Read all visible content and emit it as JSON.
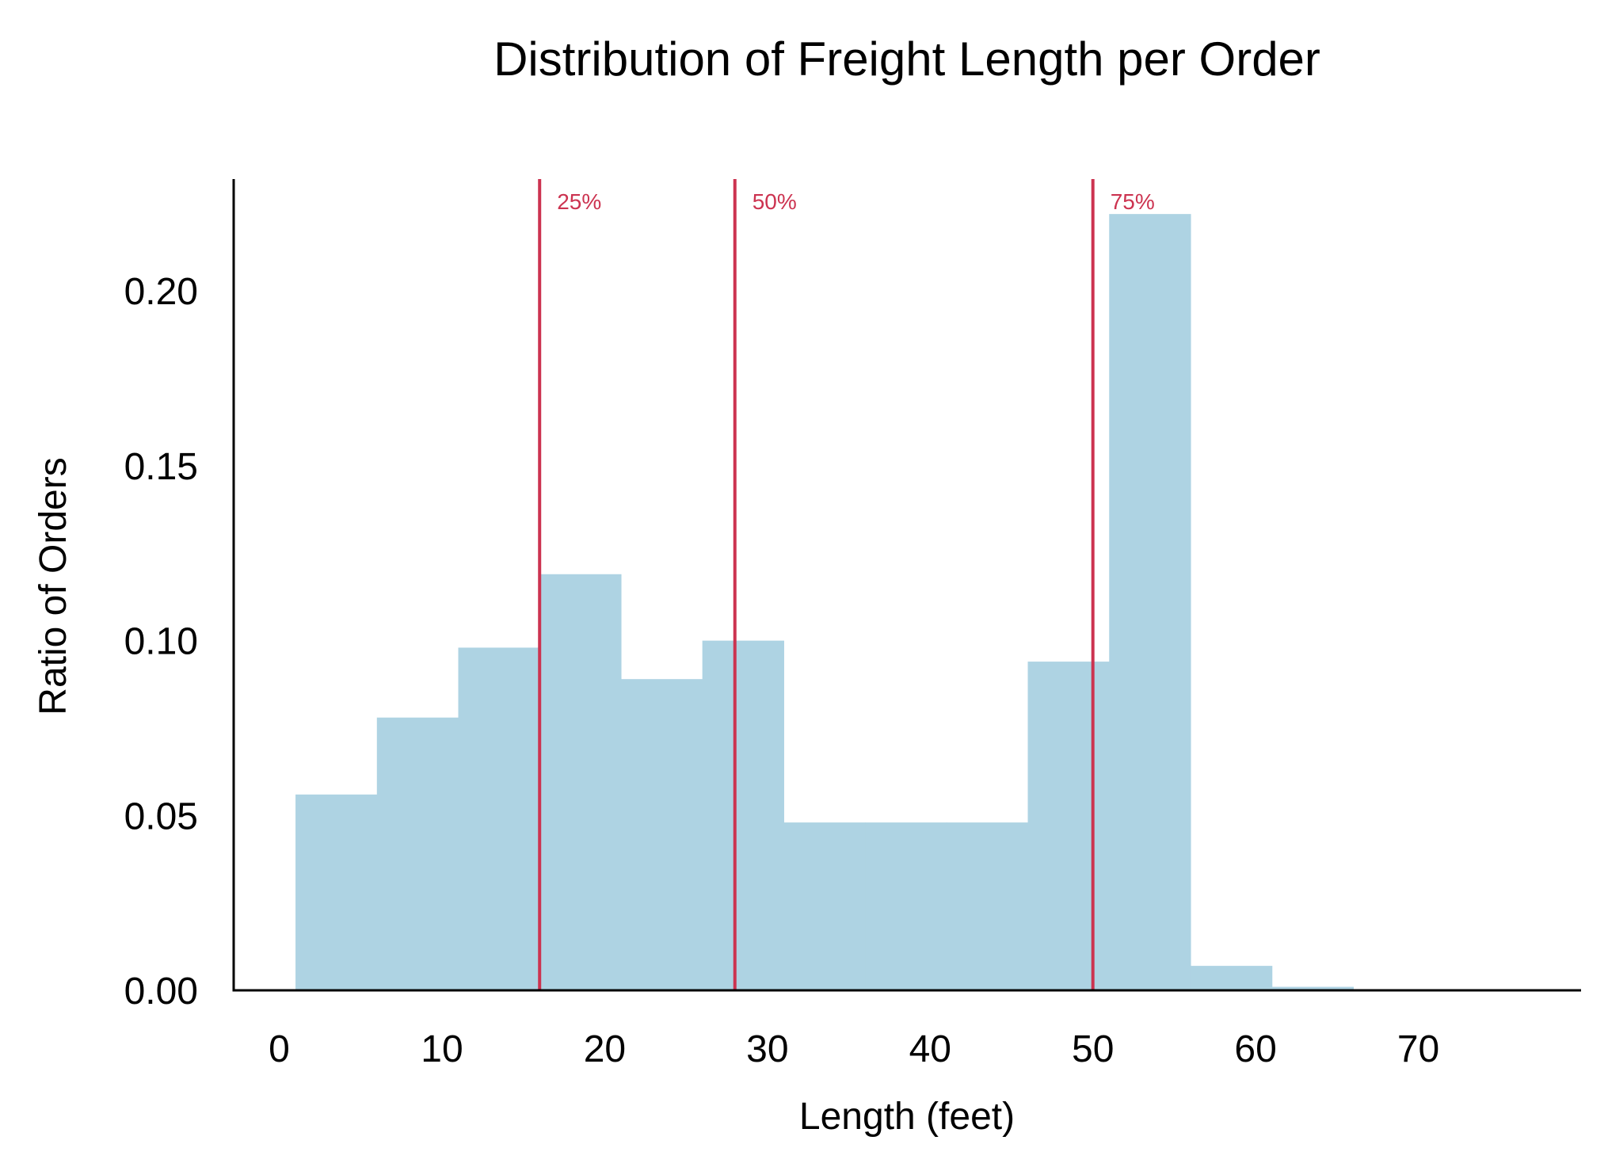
{
  "chart_data": {
    "type": "bar",
    "title": "Distribution of Freight Length per Order",
    "xlabel": "Length (feet)",
    "ylabel": "Ratio of Orders",
    "xlim": [
      -2.8,
      80
    ],
    "ylim": [
      0,
      0.232
    ],
    "x_ticks": [
      0,
      10,
      20,
      30,
      40,
      50,
      60,
      70
    ],
    "x_tick_labels": [
      "0",
      "10",
      "20",
      "30",
      "40",
      "50",
      "60",
      "70"
    ],
    "y_ticks": [
      0.0,
      0.05,
      0.1,
      0.15,
      0.2
    ],
    "y_tick_labels": [
      "0.00",
      "0.05",
      "0.10",
      "0.15",
      "0.20"
    ],
    "bins": [
      {
        "start": 1,
        "end": 6,
        "value": 0.056
      },
      {
        "start": 6,
        "end": 11,
        "value": 0.078
      },
      {
        "start": 11,
        "end": 16,
        "value": 0.098
      },
      {
        "start": 16,
        "end": 21,
        "value": 0.119
      },
      {
        "start": 21,
        "end": 26,
        "value": 0.089
      },
      {
        "start": 26,
        "end": 31,
        "value": 0.1
      },
      {
        "start": 31,
        "end": 36,
        "value": 0.048
      },
      {
        "start": 36,
        "end": 41,
        "value": 0.048
      },
      {
        "start": 41,
        "end": 46,
        "value": 0.048
      },
      {
        "start": 46,
        "end": 51,
        "value": 0.094
      },
      {
        "start": 51,
        "end": 56,
        "value": 0.222
      },
      {
        "start": 56,
        "end": 61,
        "value": 0.007
      },
      {
        "start": 61,
        "end": 66,
        "value": 0.001
      },
      {
        "start": 66,
        "end": 71,
        "value": 0.0003
      },
      {
        "start": 71,
        "end": 76,
        "value": 0.0003
      }
    ],
    "quantiles": [
      {
        "label": "25%",
        "x": 16
      },
      {
        "label": "50%",
        "x": 28
      },
      {
        "label": "75%",
        "x": 50
      }
    ],
    "colors": {
      "bar": "#aed3e3",
      "quantile_line": "#cc3350",
      "axis": "#000000"
    },
    "grid": false,
    "legend": "none"
  }
}
